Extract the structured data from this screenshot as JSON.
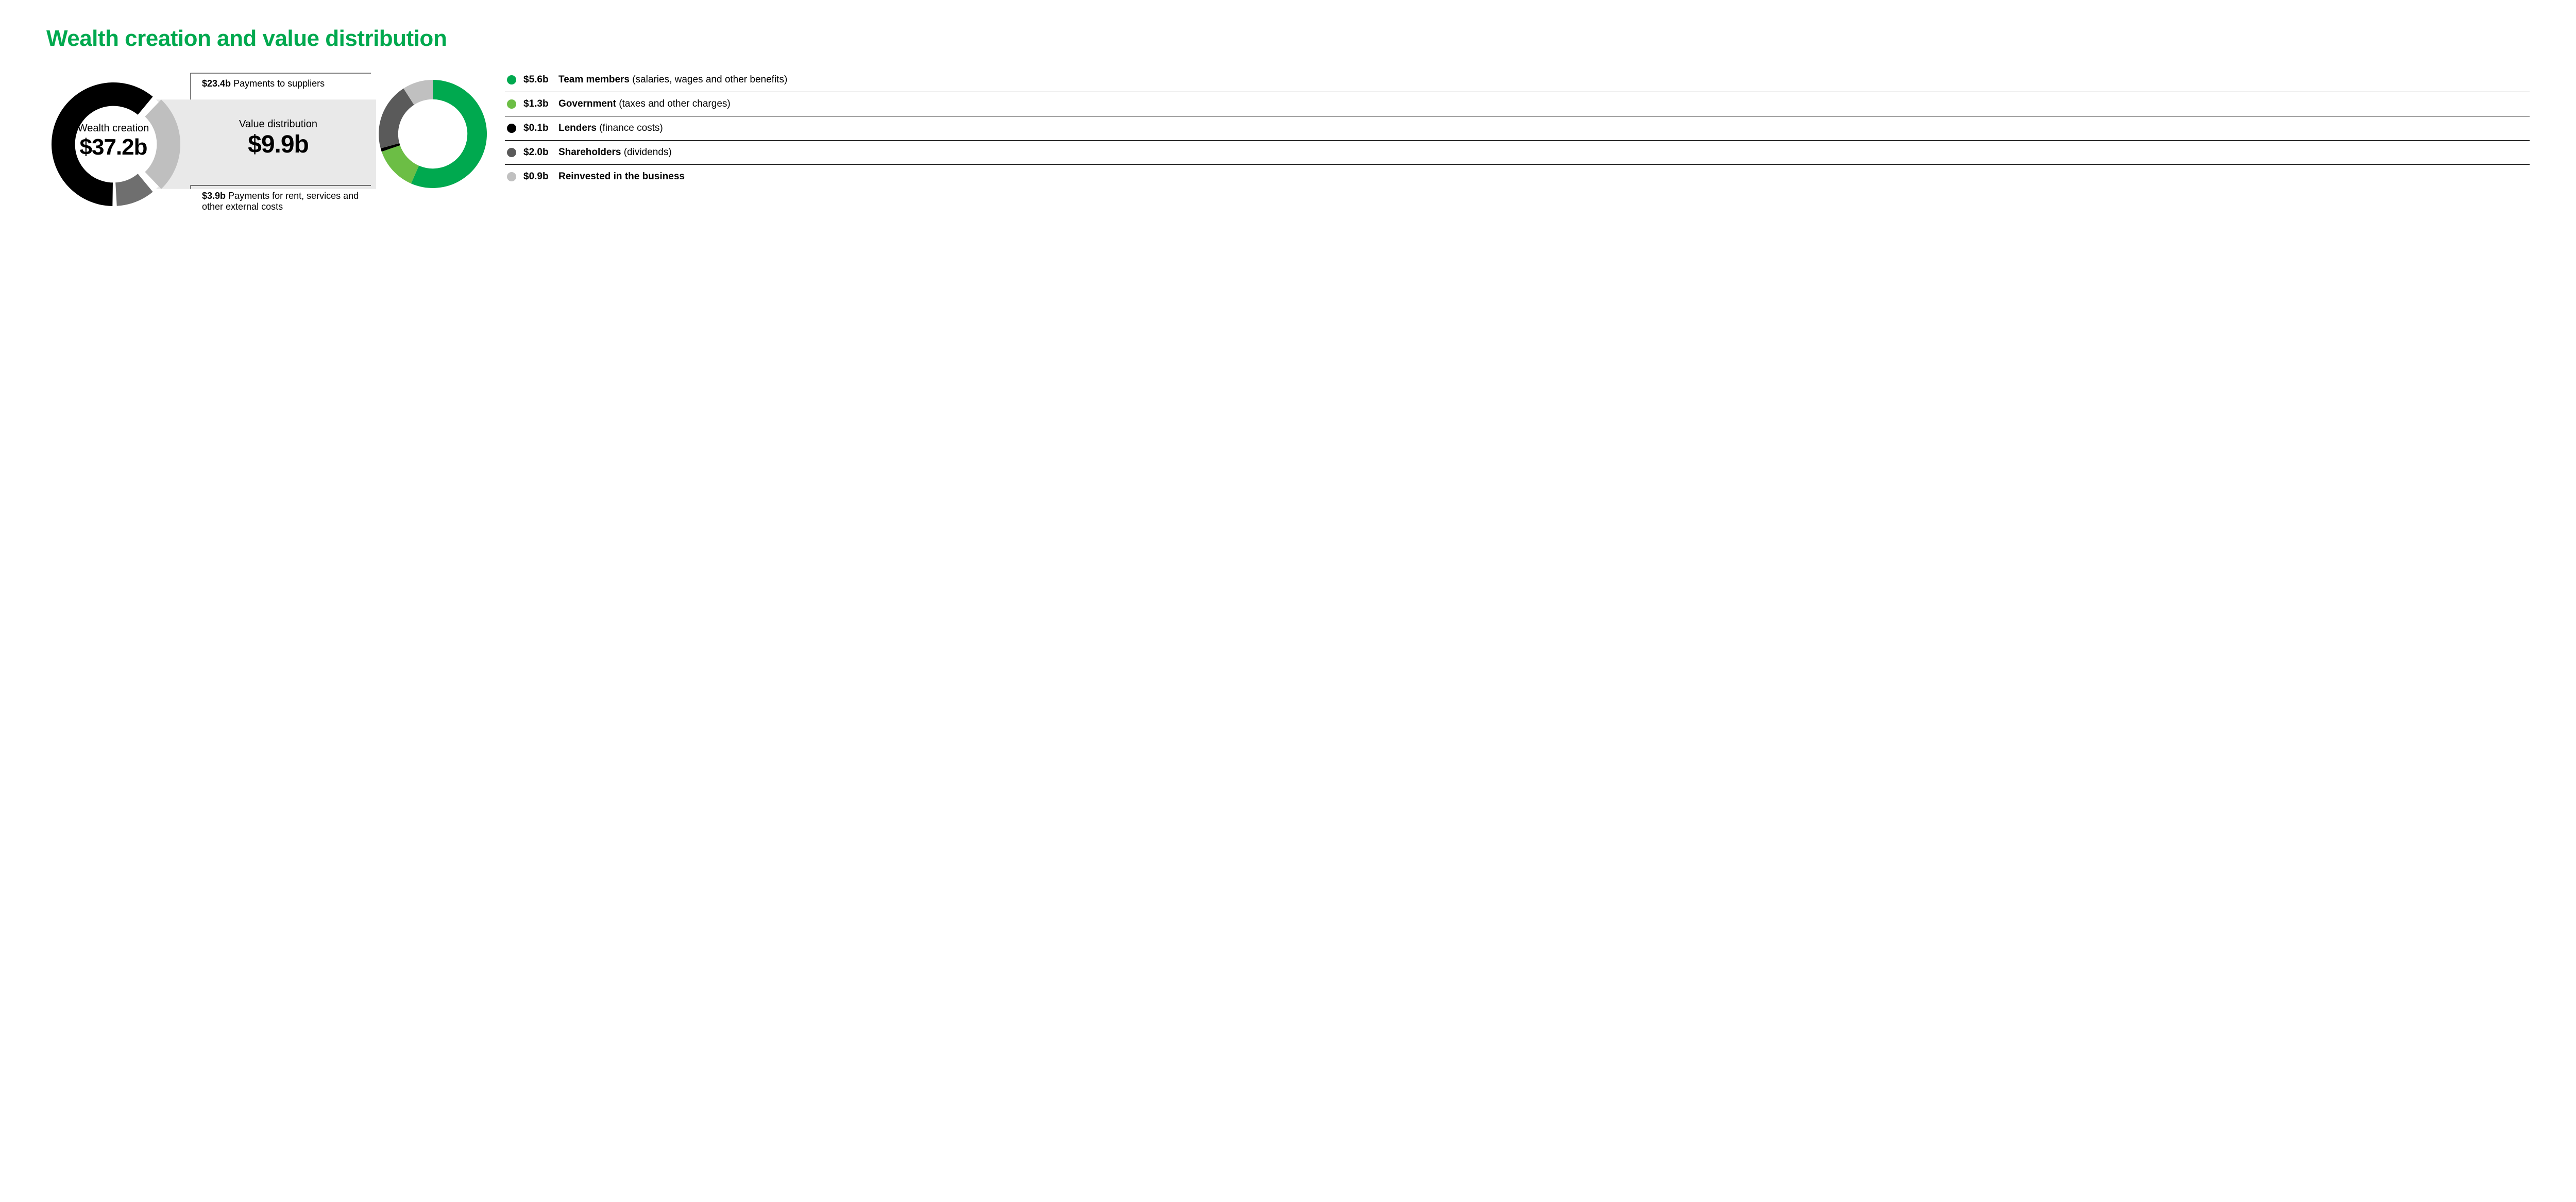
{
  "title": {
    "text": "Wealth creation and value distribution",
    "color": "#00a94f",
    "fontsize": 44
  },
  "wealth_creation_donut": {
    "type": "donut",
    "center_label_small": "Wealth creation",
    "center_label_big": "$37.2b",
    "total": 37.2,
    "inner_radius_ratio": 0.62,
    "background_color": "#ffffff",
    "gap_degrees": 4,
    "segments": [
      {
        "name": "suppliers",
        "value": 23.4,
        "color": "#000000"
      },
      {
        "name": "distribution",
        "value": 9.9,
        "color": "#bfbfbf"
      },
      {
        "name": "rent_etc",
        "value": 3.9,
        "color": "#6f6f6f"
      }
    ],
    "callouts": [
      {
        "key": "suppliers",
        "value_text": "$23.4b",
        "label_text": "Payments to suppliers"
      },
      {
        "key": "rent_etc",
        "value_text": "$3.9b",
        "label_text": "Payments for rent, services and other external costs"
      }
    ]
  },
  "value_distribution": {
    "label_small": "Value distribution",
    "label_big": "$9.9b",
    "band_color": "#e9e9e9",
    "bracket_color": "#000000"
  },
  "distribution_donut": {
    "type": "donut",
    "total": 9.9,
    "inner_radius_ratio": 0.64,
    "start_angle_deg": -90,
    "segments": [
      {
        "name": "team",
        "value": 5.6,
        "color": "#00a94f"
      },
      {
        "name": "government",
        "value": 1.3,
        "color": "#6cbe45"
      },
      {
        "name": "lenders",
        "value": 0.1,
        "color": "#000000"
      },
      {
        "name": "shareholders",
        "value": 2.0,
        "color": "#5a5a5a"
      },
      {
        "name": "reinvested",
        "value": 0.9,
        "color": "#c0c0c0"
      }
    ]
  },
  "legend": {
    "row_border_color": "#000000",
    "items": [
      {
        "swatch": "#00a94f",
        "value": "$5.6b",
        "label": "Team members",
        "sublabel": "(salaries, wages and other benefits)"
      },
      {
        "swatch": "#6cbe45",
        "value": "$1.3b",
        "label": "Government",
        "sublabel": "(taxes and other charges)"
      },
      {
        "swatch": "#000000",
        "value": "$0.1b",
        "label": "Lenders",
        "sublabel": "(finance costs)"
      },
      {
        "swatch": "#5a5a5a",
        "value": "$2.0b",
        "label": "Shareholders",
        "sublabel": "(dividends)"
      },
      {
        "swatch": "#c0c0c0",
        "value": "$0.9b",
        "label": "Reinvested in the business",
        "sublabel": ""
      }
    ]
  }
}
